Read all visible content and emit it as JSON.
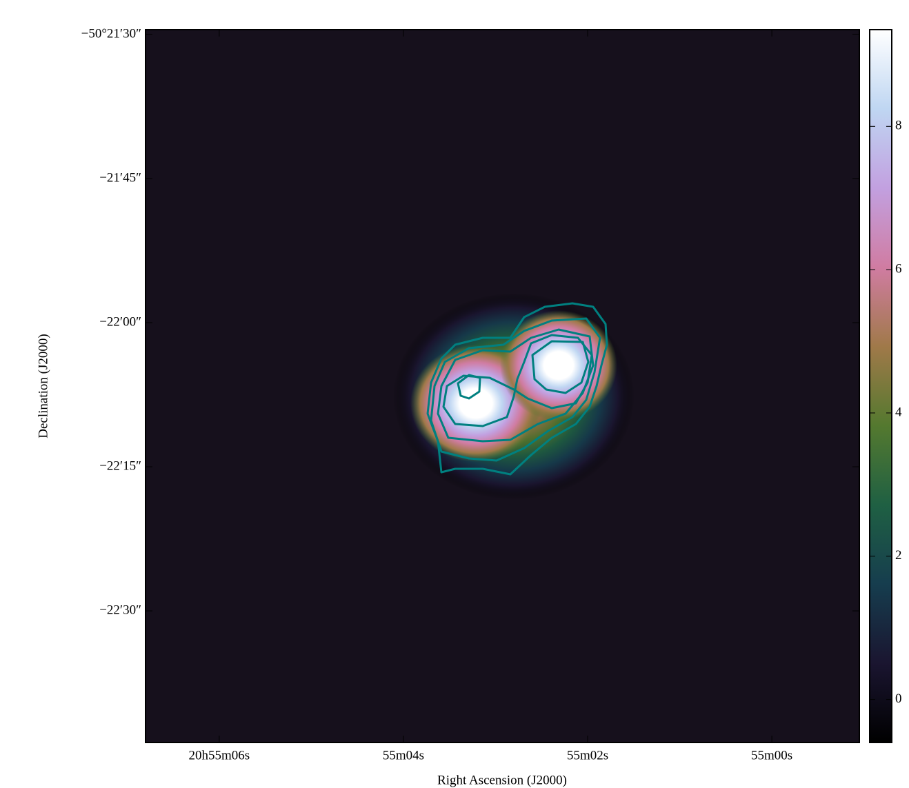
{
  "chart_data": {
    "type": "image",
    "xlabel": "Right Ascension (J2000)",
    "ylabel": "Declination (J2000)",
    "xlim": [
      6.8,
      -0.95
    ],
    "xticks": [
      {
        "value": 6,
        "label": "20h55m06s"
      },
      {
        "value": 4,
        "label": "55m04s"
      },
      {
        "value": 2,
        "label": "55m02s"
      },
      {
        "value": 0,
        "label": "55m00s"
      }
    ],
    "ylim": [
      -73.7,
      0.5
    ],
    "yticks": [
      {
        "value": 0,
        "label": "−50°21′30″"
      },
      {
        "value": -15,
        "label": "−21′45″"
      },
      {
        "value": -30,
        "label": "−22′00″"
      },
      {
        "value": -45,
        "label": "−22′15″"
      },
      {
        "value": -60,
        "label": "−22′30″"
      }
    ],
    "colorbar": {
      "clim": [
        -0.6,
        9.35
      ],
      "ticks": [
        0,
        2,
        4,
        6,
        8
      ],
      "colors": [
        "#000000",
        "#1a1530",
        "#163d4e",
        "#1f6043",
        "#54792f",
        "#a07949",
        "#d07ca2",
        "#c2a0e0",
        "#bfd6f2",
        "#ffffff"
      ]
    },
    "contour_color": "#008080"
  }
}
